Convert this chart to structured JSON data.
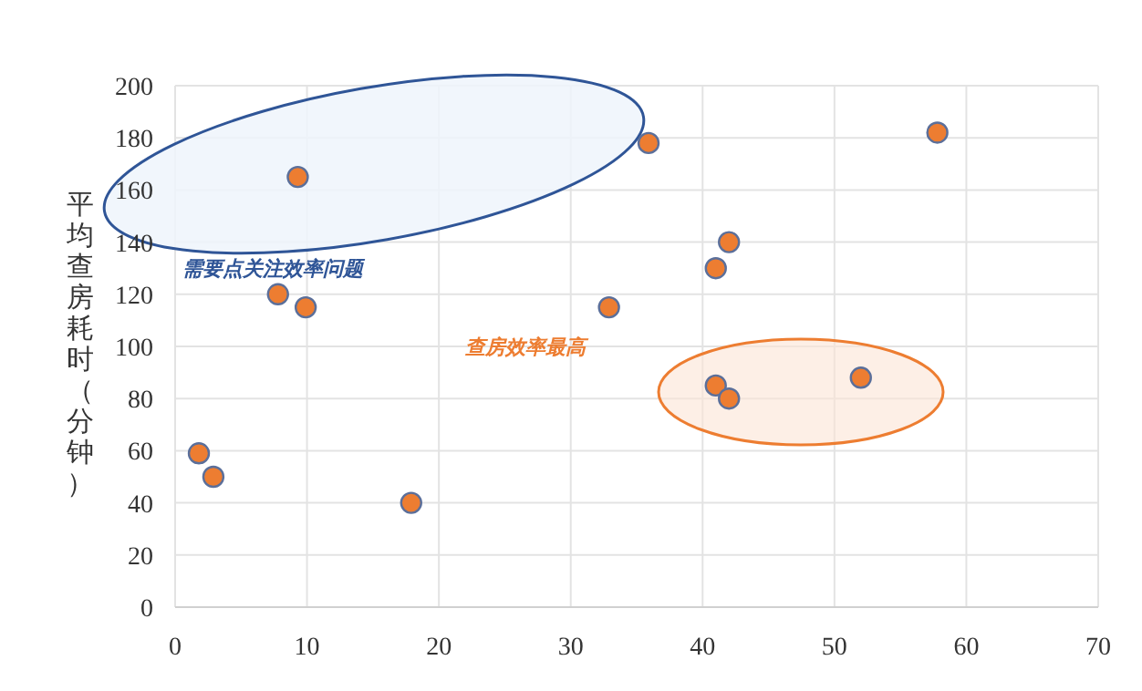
{
  "chart_data": {
    "type": "scatter",
    "ylabel": "平均查房耗时（分钟）",
    "annotations": [
      "需要点关注效率问题",
      "查房效率最高"
    ],
    "x": [
      1.8,
      2.9,
      7.8,
      9.9,
      9.3,
      17.9,
      32.9,
      35.9,
      41,
      42,
      41,
      42,
      52,
      57.8
    ],
    "series": [
      {
        "color": "#ed7d31",
        "values": [
          59,
          50,
          120,
          115,
          165,
          40,
          115,
          178,
          130,
          140,
          85,
          80,
          88,
          182
        ]
      }
    ],
    "xlim": [
      0,
      70
    ],
    "xticks": [
      0,
      10,
      20,
      30,
      40,
      50,
      60,
      70
    ],
    "ylim": [
      0,
      200
    ],
    "yticks": [
      0,
      20,
      40,
      60,
      80,
      100,
      120,
      140,
      160,
      180,
      200
    ],
    "grid": true,
    "marker": "circle"
  }
}
